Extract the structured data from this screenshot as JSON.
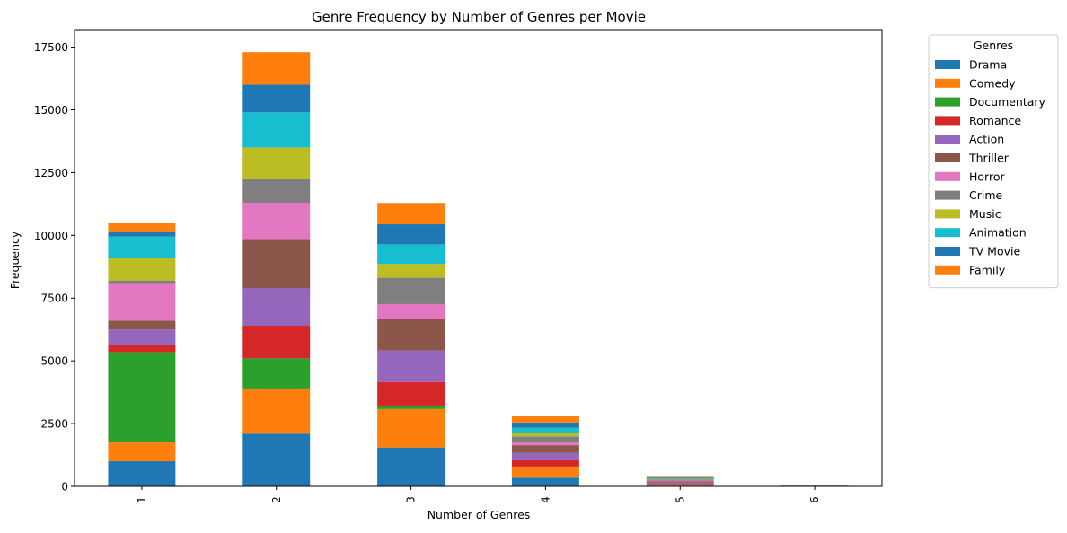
{
  "chart_data": {
    "type": "bar",
    "stacked": true,
    "title": "Genre Frequency by Number of Genres per Movie",
    "xlabel": "Number of Genres",
    "ylabel": "Frequency",
    "categories": [
      "1",
      "2",
      "3",
      "4",
      "5",
      "6"
    ],
    "ylim": [
      0,
      18200
    ],
    "yticks": [
      0,
      2500,
      5000,
      7500,
      10000,
      12500,
      15000,
      17500
    ],
    "ytick_labels": [
      "0",
      "2500",
      "5000",
      "7500",
      "10000",
      "12500",
      "15000",
      "17500"
    ],
    "legend_title": "Genres",
    "legend_position": "outside-upper-right",
    "grid": false,
    "series": [
      {
        "name": "Drama",
        "color": "#1f77b4",
        "values": [
          1000,
          2100,
          1550,
          350,
          30,
          6
        ]
      },
      {
        "name": "Comedy",
        "color": "#ff7f0e",
        "values": [
          750,
          1800,
          1530,
          400,
          40,
          6
        ]
      },
      {
        "name": "Documentary",
        "color": "#2ca02c",
        "values": [
          3600,
          1200,
          130,
          40,
          10,
          2
        ]
      },
      {
        "name": "Romance",
        "color": "#d62728",
        "values": [
          300,
          1300,
          950,
          250,
          40,
          5
        ]
      },
      {
        "name": "Action",
        "color": "#9467bd",
        "values": [
          600,
          1500,
          1250,
          300,
          40,
          6
        ]
      },
      {
        "name": "Thriller",
        "color": "#8c564b",
        "values": [
          350,
          1950,
          1250,
          300,
          40,
          5
        ]
      },
      {
        "name": "Horror",
        "color": "#e377c2",
        "values": [
          1500,
          1450,
          600,
          100,
          30,
          4
        ]
      },
      {
        "name": "Crime",
        "color": "#7f7f7f",
        "values": [
          100,
          950,
          1050,
          250,
          40,
          5
        ]
      },
      {
        "name": "Music",
        "color": "#bcbd22",
        "values": [
          900,
          1250,
          550,
          150,
          20,
          3
        ]
      },
      {
        "name": "Animation",
        "color": "#17becf",
        "values": [
          850,
          1400,
          780,
          200,
          30,
          4
        ]
      },
      {
        "name": "TV Movie",
        "color": "#1f77b4",
        "values": [
          200,
          1100,
          800,
          200,
          30,
          4
        ]
      },
      {
        "name": "Family",
        "color": "#ff7f0e",
        "values": [
          350,
          1300,
          850,
          250,
          30,
          5
        ]
      }
    ]
  }
}
